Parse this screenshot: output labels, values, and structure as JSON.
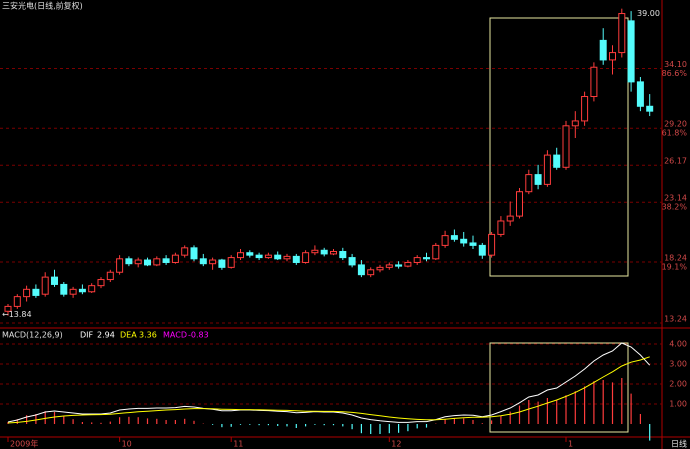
{
  "chart_data": [
    {
      "type": "candlestick",
      "title": "三安光电(日线,前复权)",
      "open": [
        14.2,
        14.6,
        15.4,
        16.0,
        15.6,
        17.0,
        16.4,
        15.6,
        16.0,
        15.8,
        16.3,
        16.8,
        17.4,
        18.5,
        18.1,
        18.4,
        18.0,
        18.5,
        18.2,
        18.8,
        19.4,
        18.5,
        18.1,
        18.4,
        17.8,
        18.6,
        19.0,
        18.8,
        18.6,
        18.8,
        18.5,
        18.7,
        18.2,
        19.0,
        19.2,
        18.9,
        19.1,
        18.6,
        18.0,
        17.2,
        17.6,
        17.8,
        18.0,
        17.9,
        18.2,
        18.6,
        18.5,
        19.6,
        20.4,
        20.1,
        19.8,
        19.6,
        18.8,
        20.5,
        21.6,
        22.0,
        24.0,
        25.4,
        24.6,
        27.0,
        26.0,
        29.4,
        29.8,
        31.8,
        36.4,
        34.8,
        35.4,
        38.0,
        33.0,
        31.0
      ],
      "high": [
        14.8,
        15.6,
        16.3,
        16.4,
        17.4,
        17.6,
        16.6,
        16.2,
        16.4,
        16.5,
        17.0,
        17.6,
        18.8,
        18.7,
        18.6,
        18.6,
        18.7,
        18.8,
        19.0,
        19.6,
        19.6,
        18.9,
        18.6,
        18.5,
        18.8,
        19.3,
        19.2,
        19.0,
        19.0,
        19.1,
        18.9,
        18.9,
        19.2,
        19.6,
        19.4,
        19.3,
        19.4,
        18.9,
        18.4,
        17.8,
        18.0,
        18.2,
        18.3,
        18.4,
        18.8,
        19.0,
        19.8,
        20.8,
        20.9,
        20.7,
        20.4,
        19.8,
        20.7,
        22.0,
        23.2,
        24.3,
        25.8,
        26.2,
        27.4,
        27.6,
        29.8,
        30.6,
        32.2,
        34.6,
        37.4,
        36.0,
        39.0,
        38.8,
        33.4,
        32.0
      ],
      "low": [
        13.84,
        14.4,
        15.0,
        15.3,
        15.4,
        16.2,
        15.4,
        15.3,
        15.6,
        15.7,
        16.1,
        16.6,
        17.2,
        17.9,
        17.8,
        17.9,
        17.9,
        18.0,
        18.1,
        18.6,
        18.3,
        17.9,
        17.6,
        17.6,
        17.7,
        18.4,
        18.6,
        18.4,
        18.5,
        18.4,
        18.3,
        18.0,
        18.1,
        18.8,
        18.7,
        18.8,
        18.4,
        17.8,
        17.0,
        17.0,
        17.4,
        17.6,
        17.7,
        17.8,
        18.0,
        18.3,
        18.4,
        19.4,
        19.9,
        19.5,
        19.3,
        18.5,
        18.6,
        20.3,
        21.2,
        21.8,
        23.8,
        24.2,
        24.4,
        25.8,
        25.8,
        28.4,
        29.4,
        31.4,
        34.4,
        33.6,
        35.0,
        32.2,
        30.6,
        30.2
      ],
      "close": [
        14.6,
        15.4,
        16.0,
        15.5,
        17.0,
        16.4,
        15.6,
        16.0,
        15.8,
        16.3,
        16.8,
        17.4,
        18.5,
        18.1,
        18.4,
        18.0,
        18.5,
        18.2,
        18.8,
        19.4,
        18.5,
        18.1,
        18.4,
        17.8,
        18.6,
        19.0,
        18.8,
        18.6,
        18.8,
        18.5,
        18.7,
        18.2,
        19.0,
        19.2,
        18.9,
        19.1,
        18.6,
        18.0,
        17.2,
        17.6,
        17.8,
        18.0,
        17.9,
        18.2,
        18.6,
        18.5,
        19.6,
        20.4,
        20.1,
        19.8,
        19.6,
        18.8,
        20.5,
        21.6,
        22.0,
        24.0,
        25.4,
        24.6,
        27.0,
        26.0,
        29.4,
        29.8,
        31.8,
        34.2,
        34.8,
        35.4,
        38.6,
        33.0,
        31.0,
        30.6
      ],
      "up_color": "#ff3c3c",
      "down_color": "#54fcfc",
      "ylim": [
        12.83,
        39.71
      ],
      "yticks": [
        13.24,
        18.24,
        23.14,
        26.17,
        {
          "value": 29.2,
          "label": "29.20"
        },
        {
          "value": 34.1,
          "label": "34.10"
        }
      ],
      "fib_levels": [
        {
          "value": 18.24,
          "label": "19.1%"
        },
        {
          "value": 23.14,
          "label": "38.2%"
        },
        {
          "value": 29.2,
          "label": "61.8%"
        },
        {
          "value": 34.1,
          "label": "86.6%"
        }
      ],
      "high_label": {
        "value": 39,
        "label": "39.00"
      },
      "low_label": {
        "value": 13.84,
        "label": "←13.84"
      },
      "grid": true
    },
    {
      "type": "macd",
      "title": "MACD(12,26,9)",
      "categories": [
        "2009年",
        null,
        null,
        null,
        null,
        null,
        null,
        null,
        null,
        null,
        null,
        null,
        "10",
        null,
        null,
        null,
        null,
        null,
        null,
        null,
        null,
        null,
        null,
        null,
        "11",
        null,
        null,
        null,
        null,
        null,
        null,
        null,
        null,
        null,
        null,
        null,
        null,
        null,
        null,
        null,
        null,
        "12",
        null,
        null,
        null,
        null,
        null,
        null,
        null,
        null,
        null,
        null,
        null,
        null,
        null,
        null,
        null,
        null,
        null,
        null,
        "1",
        null,
        null,
        null,
        null,
        null,
        null,
        null,
        null,
        null
      ],
      "period_label": "日线",
      "series": [
        {
          "name": "DIF",
          "color": "#ffffff",
          "values": [
            0.1,
            0.2,
            0.35,
            0.45,
            0.6,
            0.65,
            0.6,
            0.55,
            0.5,
            0.5,
            0.5,
            0.55,
            0.7,
            0.75,
            0.78,
            0.78,
            0.8,
            0.8,
            0.82,
            0.88,
            0.85,
            0.78,
            0.74,
            0.66,
            0.66,
            0.7,
            0.7,
            0.68,
            0.67,
            0.64,
            0.62,
            0.56,
            0.58,
            0.62,
            0.6,
            0.6,
            0.55,
            0.45,
            0.3,
            0.22,
            0.16,
            0.12,
            0.08,
            0.08,
            0.12,
            0.12,
            0.22,
            0.36,
            0.42,
            0.45,
            0.44,
            0.36,
            0.45,
            0.62,
            0.8,
            1.06,
            1.35,
            1.45,
            1.7,
            1.8,
            2.1,
            2.4,
            2.75,
            3.15,
            3.45,
            3.65,
            4.05,
            3.85,
            3.45,
            2.94
          ]
        },
        {
          "name": "DEA",
          "color": "#ffff00",
          "values": [
            0.05,
            0.08,
            0.13,
            0.2,
            0.28,
            0.35,
            0.4,
            0.43,
            0.45,
            0.46,
            0.47,
            0.49,
            0.53,
            0.57,
            0.61,
            0.64,
            0.67,
            0.7,
            0.72,
            0.75,
            0.77,
            0.77,
            0.76,
            0.74,
            0.73,
            0.72,
            0.72,
            0.71,
            0.7,
            0.69,
            0.68,
            0.66,
            0.64,
            0.64,
            0.63,
            0.63,
            0.61,
            0.58,
            0.53,
            0.47,
            0.41,
            0.35,
            0.3,
            0.26,
            0.23,
            0.21,
            0.21,
            0.24,
            0.28,
            0.31,
            0.34,
            0.34,
            0.36,
            0.41,
            0.49,
            0.6,
            0.75,
            0.89,
            1.05,
            1.2,
            1.38,
            1.58,
            1.81,
            2.08,
            2.35,
            2.61,
            2.9,
            3.09,
            3.2,
            3.36
          ]
        },
        {
          "name": "MACD",
          "color": "#ff00ff",
          "values": [
            0.1,
            0.24,
            0.44,
            0.5,
            0.64,
            0.6,
            0.4,
            0.24,
            0.1,
            0.08,
            0.06,
            0.12,
            0.34,
            0.36,
            0.34,
            0.28,
            0.26,
            0.2,
            0.2,
            0.26,
            0.16,
            0.02,
            -0.04,
            -0.16,
            -0.14,
            -0.04,
            -0.04,
            -0.06,
            -0.06,
            -0.1,
            -0.12,
            -0.2,
            -0.12,
            -0.04,
            -0.06,
            -0.06,
            -0.12,
            -0.26,
            -0.46,
            -0.5,
            -0.5,
            -0.46,
            -0.44,
            -0.36,
            -0.22,
            -0.18,
            0.02,
            0.24,
            0.28,
            0.28,
            0.2,
            0.04,
            0.18,
            0.42,
            0.62,
            0.92,
            1.2,
            1.12,
            1.3,
            1.2,
            1.44,
            1.64,
            1.88,
            2.14,
            2.2,
            2.08,
            2.3,
            1.52,
            0.5,
            -0.83
          ]
        }
      ],
      "ylim": [
        -0.65,
        4.7
      ],
      "yticks": [
        {
          "value": 1,
          "label": "1.00"
        },
        {
          "value": 2,
          "label": "2.00"
        },
        {
          "value": 3,
          "label": "3.00"
        },
        {
          "value": 4,
          "label": "4.00"
        }
      ],
      "grid": true
    }
  ]
}
